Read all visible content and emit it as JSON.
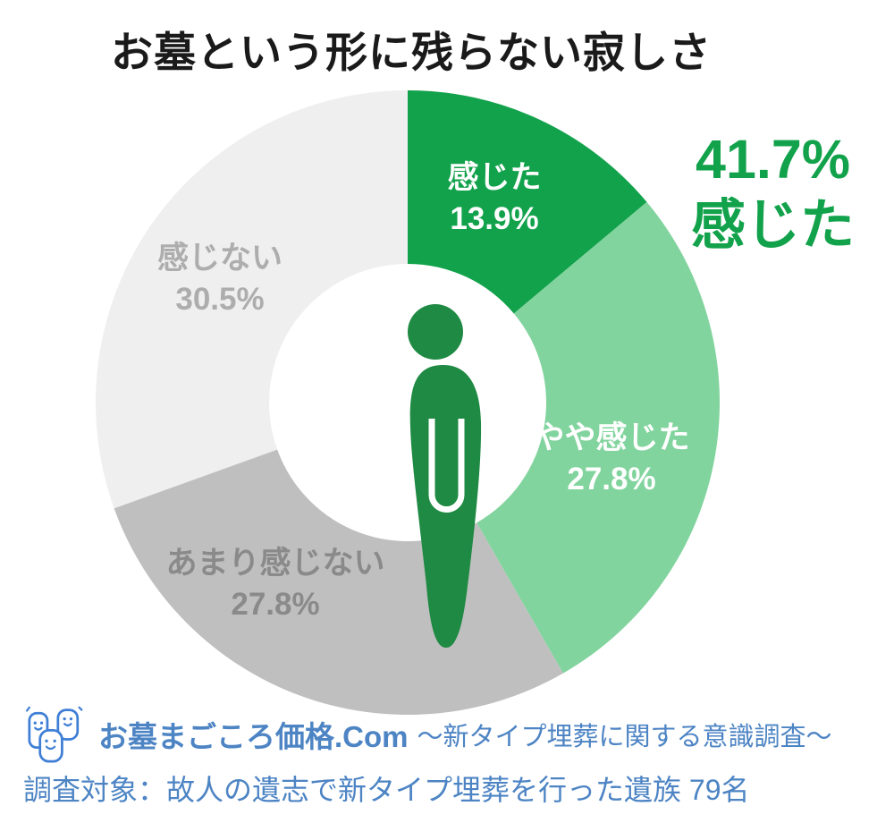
{
  "title": "お墓という形に残らない寂しさ",
  "callout": {
    "value": "41.7%",
    "label": "感じた"
  },
  "chart_data": {
    "type": "pie",
    "title": "お墓という形に残らない寂しさ",
    "categories": [
      "感じた",
      "やや感じた",
      "あまり感じない",
      "感じない"
    ],
    "values": [
      13.9,
      27.8,
      27.8,
      30.5
    ],
    "display_values": [
      "13.9%",
      "27.8%",
      "27.8%",
      "30.5%"
    ],
    "unit": "%",
    "colors": [
      "#12a24b",
      "#82d49e",
      "#bfbfbf",
      "#efefef"
    ],
    "donut": true,
    "start_angle_deg": 0,
    "direction": "clockwise",
    "center_pictogram": "bowing-person",
    "annotation": "41.7% 感じた",
    "legend_position": "none",
    "labels_on_slices": true
  },
  "colors": {
    "accent_green": "#12a24b",
    "light_green": "#82d49e",
    "mid_gray": "#bfbfbf",
    "light_gray": "#efefef",
    "person_green": "#1f8a43",
    "footer_blue": "#4d84c4",
    "title_black": "#1a1a1a"
  },
  "icons": {
    "logo": "gravestone-family-mascot",
    "center": "bowing-person"
  },
  "footer": {
    "brand": "お墓まごころ価格.Com",
    "survey": "～新タイプ埋葬に関する意識調査～",
    "target": "調査対象：故人の遺志で新タイプ埋葬を行った遺族 79名"
  }
}
